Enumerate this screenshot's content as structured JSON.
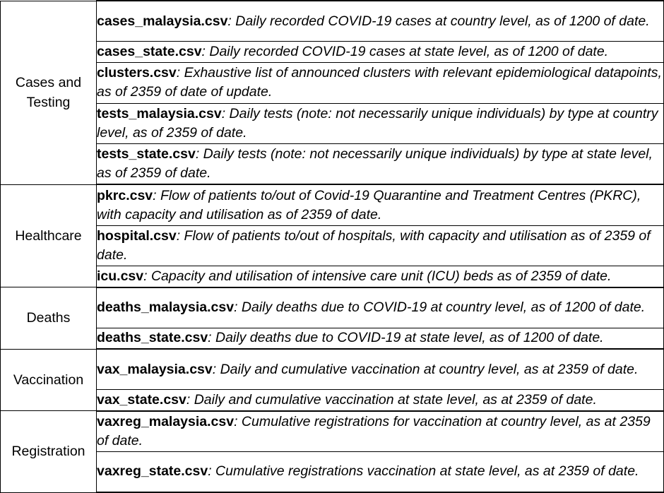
{
  "groups": [
    {
      "category": "Cases and Testing",
      "rows": [
        {
          "file": "cases_malaysia.csv",
          "desc": ": Daily recorded COVID-19 cases at country level, as of 1200 of date."
        },
        {
          "file": "cases_state.csv",
          "desc": ": Daily recorded COVID-19 cases at state level, as of 1200 of date."
        },
        {
          "file": "clusters.csv",
          "desc": ": Exhaustive list of announced clusters with relevant epidemiological datapoints, as of 2359 of date of update."
        },
        {
          "file": "tests_malaysia.csv",
          "desc": ": Daily tests (note: not necessarily unique individuals) by type at country level, as of 2359 of date."
        },
        {
          "file": "tests_state.csv",
          "desc": ": Daily tests (note: not necessarily unique individuals) by type at state level, as of 2359 of date."
        }
      ]
    },
    {
      "category": "Healthcare",
      "rows": [
        {
          "file": "pkrc.csv",
          "desc": ": Flow of patients to/out of Covid-19 Quarantine and Treatment Centres (PKRC), with capacity and utilisation as of 2359 of date."
        },
        {
          "file": "hospital.csv",
          "desc": ": Flow of patients to/out of hospitals, with capacity and utilisation as of 2359 of date."
        },
        {
          "file": "icu.csv",
          "desc": ": Capacity and utilisation of intensive care unit (ICU) beds as of 2359 of date."
        }
      ]
    },
    {
      "category": "Deaths",
      "rows": [
        {
          "file": "deaths_malaysia.csv",
          "desc": ": Daily deaths due to COVID-19 at country level, as of 1200 of date."
        },
        {
          "file": "deaths_state.csv",
          "desc": ": Daily deaths due to COVID-19 at state level, as of 1200 of date."
        }
      ]
    },
    {
      "category": "Vaccination",
      "rows": [
        {
          "file": "vax_malaysia.csv",
          "desc": ": Daily and cumulative vaccination at country level, as at 2359 of date."
        },
        {
          "file": "vax_state.csv",
          "desc": ": Daily and cumulative vaccination at state level, as at 2359 of date."
        }
      ]
    },
    {
      "category": "Registration",
      "rows": [
        {
          "file": "vaxreg_malaysia.csv",
          "desc": ": Cumulative registrations for vaccination at country level, as at 2359 of date."
        },
        {
          "file": "vaxreg_state.csv",
          "desc": ": Cumulative registrations vaccination at state level, as at 2359 of date."
        }
      ]
    }
  ]
}
